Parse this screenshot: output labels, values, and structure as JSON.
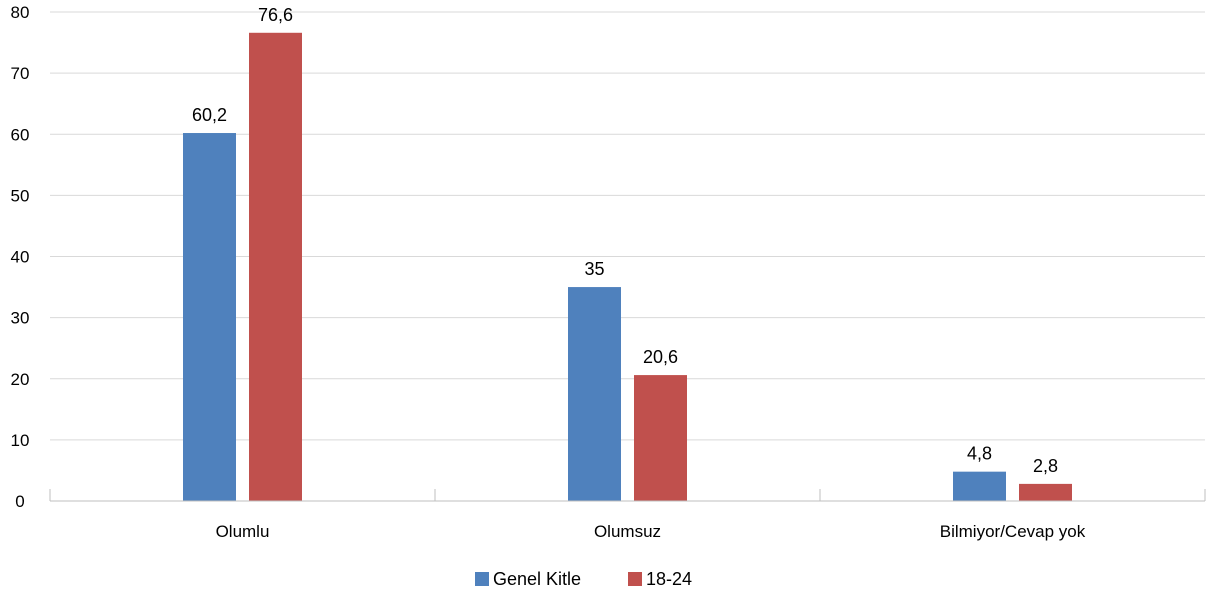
{
  "chart_data": {
    "type": "bar",
    "categories": [
      "Olumlu",
      "Olumsuz",
      "Bilmiyor/Cevap yok"
    ],
    "series": [
      {
        "name": "Genel Kitle",
        "values": [
          60.2,
          35,
          4.8
        ],
        "labels": [
          "60,2",
          "35",
          "4,8"
        ],
        "color": "#4F81BD"
      },
      {
        "name": "18-24",
        "values": [
          76.6,
          20.6,
          2.8
        ],
        "labels": [
          "76,6",
          "20,6",
          "2,8"
        ],
        "color": "#C0504D"
      }
    ],
    "ylim": [
      0,
      80
    ],
    "yticks": [
      "0",
      "10",
      "20",
      "30",
      "40",
      "50",
      "60",
      "70",
      "80"
    ],
    "grid": true,
    "legend": "bottom-center"
  }
}
